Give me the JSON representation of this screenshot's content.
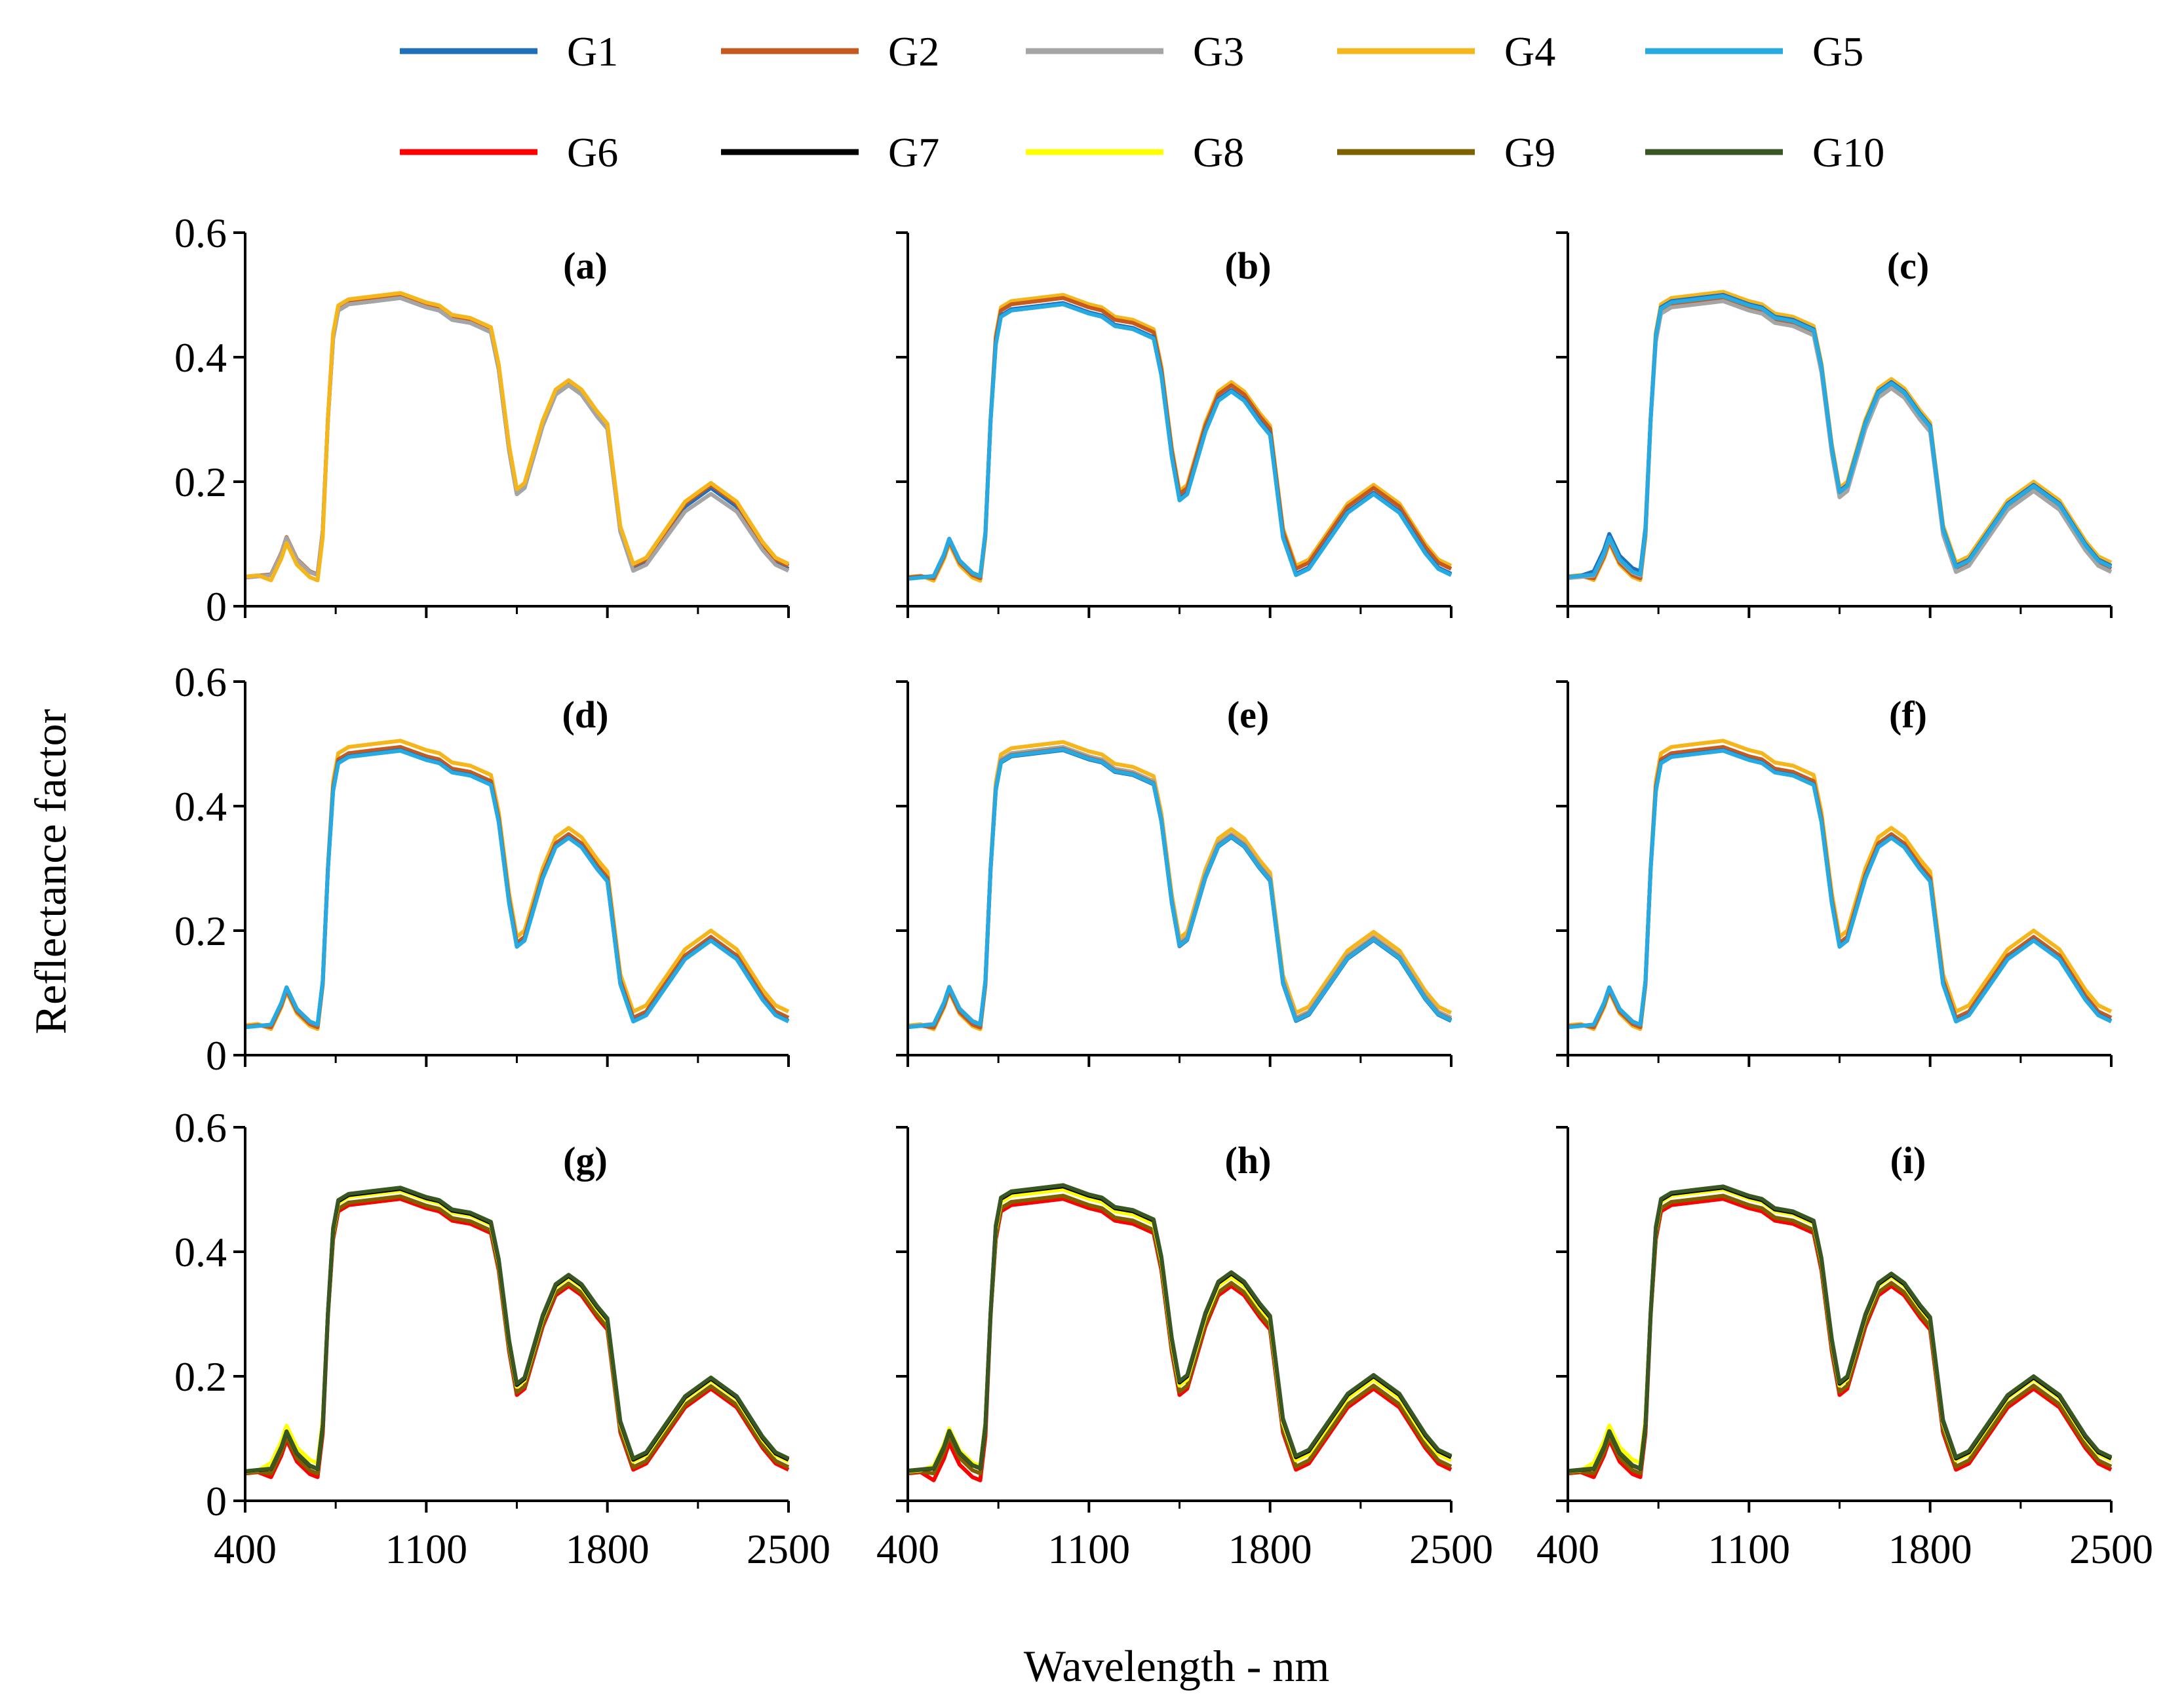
{
  "figure": {
    "ylabel": "Reflectance factor",
    "xlabel": "Wavelength - nm"
  },
  "legend": [
    {
      "name": "G1",
      "color": "#1f6fba"
    },
    {
      "name": "G2",
      "color": "#c65a1e"
    },
    {
      "name": "G3",
      "color": "#a5a5a5"
    },
    {
      "name": "G4",
      "color": "#f5b61c"
    },
    {
      "name": "G5",
      "color": "#27a9e1"
    },
    {
      "name": "G6",
      "color": "#ff0000"
    },
    {
      "name": "G7",
      "color": "#000000"
    },
    {
      "name": "G8",
      "color": "#ffff00"
    },
    {
      "name": "G9",
      "color": "#7f6000"
    },
    {
      "name": "G10",
      "color": "#385723"
    }
  ],
  "chart_data": {
    "type": "line",
    "layout": "3x3 small multiples",
    "x": [
      400,
      450,
      500,
      540,
      560,
      600,
      650,
      680,
      700,
      720,
      740,
      760,
      800,
      900,
      1000,
      1100,
      1150,
      1200,
      1270,
      1350,
      1380,
      1420,
      1450,
      1480,
      1550,
      1600,
      1650,
      1700,
      1760,
      1800,
      1850,
      1900,
      1950,
      2000,
      2100,
      2200,
      2300,
      2400,
      2450,
      2500
    ],
    "base_values": [
      0.046,
      0.048,
      0.05,
      0.085,
      0.11,
      0.075,
      0.055,
      0.05,
      0.12,
      0.3,
      0.43,
      0.475,
      0.485,
      0.49,
      0.495,
      0.48,
      0.475,
      0.46,
      0.455,
      0.44,
      0.38,
      0.25,
      0.18,
      0.19,
      0.29,
      0.34,
      0.355,
      0.34,
      0.305,
      0.285,
      0.12,
      0.06,
      0.07,
      0.1,
      0.16,
      0.19,
      0.16,
      0.095,
      0.07,
      0.06
    ],
    "xticks": [
      400,
      1100,
      1800,
      2500
    ],
    "yticks": [
      0,
      0.2,
      0.4,
      0.6
    ],
    "xtick_labels": [
      "400",
      "1100",
      "1800",
      "2500"
    ],
    "ytick_labels": [
      "0",
      "0.2",
      "0.4",
      "0.6"
    ],
    "xlim": [
      400,
      2500
    ],
    "ylim": [
      0,
      0.6
    ],
    "panels": [
      {
        "label": "(a)",
        "series": [
          {
            "name": "G1",
            "offset": 0.0,
            "peak_shift": 0.0
          },
          {
            "name": "G2",
            "offset": 0.005,
            "peak_shift": 0.0
          },
          {
            "name": "G3",
            "offset": 0.0,
            "peak_shift": 0.0,
            "swir_scale": 0.95
          },
          {
            "name": "G4",
            "offset": 0.008,
            "peak_shift": -0.01
          }
        ]
      },
      {
        "label": "(b)",
        "series": [
          {
            "name": "G4",
            "offset": 0.005,
            "peak_shift": -0.01
          },
          {
            "name": "G2",
            "offset": 0.0,
            "peak_shift": -0.005
          },
          {
            "name": "G1",
            "offset": -0.008,
            "peak_shift": 0.0
          },
          {
            "name": "G5",
            "offset": -0.01,
            "peak_shift": 0.0
          }
        ]
      },
      {
        "label": "(c)",
        "series": [
          {
            "name": "G4",
            "offset": 0.01,
            "peak_shift": -0.01
          },
          {
            "name": "G2",
            "offset": 0.0,
            "peak_shift": -0.005
          },
          {
            "name": "G3",
            "offset": -0.005,
            "peak_shift": 0.0
          },
          {
            "name": "G1",
            "offset": 0.005,
            "peak_shift": 0.005
          },
          {
            "name": "G5",
            "offset": 0.003,
            "peak_shift": 0.0
          }
        ]
      },
      {
        "label": "(d)",
        "series": [
          {
            "name": "G4",
            "offset": 0.01,
            "peak_shift": -0.01
          },
          {
            "name": "G2",
            "offset": 0.0,
            "peak_shift": -0.005
          },
          {
            "name": "G1",
            "offset": -0.005,
            "peak_shift": 0.0
          },
          {
            "name": "G5",
            "offset": -0.006,
            "peak_shift": 0.0
          }
        ]
      },
      {
        "label": "(e)",
        "series": [
          {
            "name": "G4",
            "offset": 0.008,
            "peak_shift": -0.01
          },
          {
            "name": "G3",
            "offset": 0.0,
            "peak_shift": 0.0
          },
          {
            "name": "G2",
            "offset": -0.003,
            "peak_shift": -0.005
          },
          {
            "name": "G1",
            "offset": -0.005,
            "peak_shift": 0.0
          },
          {
            "name": "G5",
            "offset": -0.004,
            "peak_shift": 0.0
          }
        ]
      },
      {
        "label": "(f)",
        "series": [
          {
            "name": "G4",
            "offset": 0.01,
            "peak_shift": -0.01
          },
          {
            "name": "G2",
            "offset": 0.0,
            "peak_shift": -0.005
          },
          {
            "name": "G1",
            "offset": -0.005,
            "peak_shift": 0.0
          },
          {
            "name": "G5",
            "offset": -0.006,
            "peak_shift": 0.0
          }
        ]
      },
      {
        "label": "(g)",
        "series": [
          {
            "name": "G6",
            "offset": -0.01,
            "peak_shift": -0.01
          },
          {
            "name": "G9",
            "offset": -0.006,
            "peak_shift": -0.005
          },
          {
            "name": "G8",
            "offset": 0.003,
            "peak_shift": 0.01
          },
          {
            "name": "G7",
            "offset": 0.006,
            "peak_shift": 0.0
          },
          {
            "name": "G10",
            "offset": 0.008,
            "peak_shift": 0.0
          }
        ]
      },
      {
        "label": "(h)",
        "series": [
          {
            "name": "G6",
            "offset": -0.01,
            "peak_shift": -0.015
          },
          {
            "name": "G9",
            "offset": -0.005,
            "peak_shift": -0.005
          },
          {
            "name": "G8",
            "offset": 0.005,
            "peak_shift": 0.005
          },
          {
            "name": "G7",
            "offset": 0.01,
            "peak_shift": 0.0
          },
          {
            "name": "G10",
            "offset": 0.012,
            "peak_shift": 0.0
          }
        ]
      },
      {
        "label": "(i)",
        "series": [
          {
            "name": "G6",
            "offset": -0.01,
            "peak_shift": -0.01
          },
          {
            "name": "G9",
            "offset": -0.005,
            "peak_shift": -0.005
          },
          {
            "name": "G8",
            "offset": 0.005,
            "peak_shift": 0.01
          },
          {
            "name": "G7",
            "offset": 0.008,
            "peak_shift": 0.0
          },
          {
            "name": "G10",
            "offset": 0.01,
            "peak_shift": 0.0
          }
        ]
      }
    ]
  }
}
